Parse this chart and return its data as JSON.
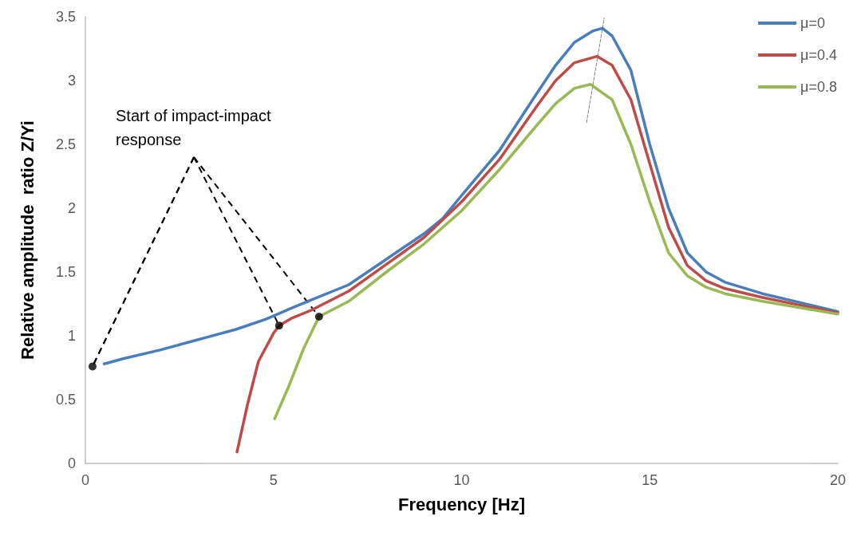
{
  "chart_data": {
    "type": "line",
    "xlabel": "Frequency [Hz]",
    "ylabel": "Relative amplitude  ratio Z/Yi",
    "xlim": [
      0,
      20
    ],
    "xticks": [
      0,
      5,
      10,
      15,
      20
    ],
    "ylim": [
      0,
      3.5
    ],
    "yticks": [
      0,
      0.5,
      1,
      1.5,
      2,
      2.5,
      3,
      3.5
    ],
    "grid": false,
    "legend": "top right",
    "marker": "none",
    "line_style": "solid",
    "annotations": [
      {
        "text": "Start of impact-impact response",
        "x": 0.19,
        "y": 0.76
      }
    ],
    "series": [
      {
        "name": "μ=0",
        "color": "#4a7ebb",
        "x": [
          0.5,
          1,
          2,
          3,
          4,
          4.8,
          5.5,
          6,
          7,
          8,
          9,
          9.5,
          10,
          11,
          12,
          12.5,
          13,
          13.5,
          13.74,
          14,
          14.5,
          15,
          15.5,
          16,
          16.5,
          17,
          18,
          19,
          20
        ],
        "values": [
          0.78,
          0.82,
          0.89,
          0.97,
          1.05,
          1.13,
          1.22,
          1.28,
          1.4,
          1.6,
          1.8,
          1.92,
          2.1,
          2.45,
          2.9,
          3.12,
          3.3,
          3.39,
          3.41,
          3.35,
          3.08,
          2.5,
          2.0,
          1.65,
          1.5,
          1.42,
          1.33,
          1.26,
          1.19
        ]
      },
      {
        "name": "μ=0.4",
        "color": "#be4b48",
        "x": [
          4.03,
          4.3,
          4.6,
          5,
          5.15,
          5.5,
          6,
          7,
          8,
          9,
          10,
          11,
          12,
          12.5,
          13,
          13.6,
          14,
          14.5,
          15,
          15.5,
          16,
          16.5,
          17,
          18,
          19,
          20
        ],
        "values": [
          0.09,
          0.45,
          0.8,
          1.02,
          1.08,
          1.14,
          1.2,
          1.35,
          1.56,
          1.77,
          2.05,
          2.38,
          2.8,
          3.0,
          3.14,
          3.19,
          3.12,
          2.85,
          2.35,
          1.85,
          1.55,
          1.43,
          1.37,
          1.3,
          1.24,
          1.18
        ]
      },
      {
        "name": "μ=0.8",
        "color": "#98b954",
        "x": [
          5.03,
          5.4,
          5.8,
          6.21,
          7,
          8,
          9,
          10,
          11,
          12,
          12.5,
          13,
          13.43,
          14,
          14.5,
          15,
          15.5,
          16,
          16.5,
          17,
          18,
          19,
          20
        ],
        "values": [
          0.35,
          0.6,
          0.9,
          1.15,
          1.27,
          1.5,
          1.72,
          1.98,
          2.3,
          2.65,
          2.82,
          2.94,
          2.97,
          2.85,
          2.5,
          2.05,
          1.65,
          1.47,
          1.38,
          1.33,
          1.27,
          1.22,
          1.17
        ]
      },
      {
        "type": "line",
        "color": "#808080",
        "line_style": "dashed",
        "x": [
          13.32,
          13.79
        ],
        "values": [
          2.67,
          3.49
        ]
      },
      {
        "type": "scatter",
        "color": "#000000",
        "marker": "circle",
        "x": [
          0.19,
          5.15,
          6.21
        ],
        "values": [
          0.76,
          1.08,
          1.15
        ]
      }
    ]
  }
}
